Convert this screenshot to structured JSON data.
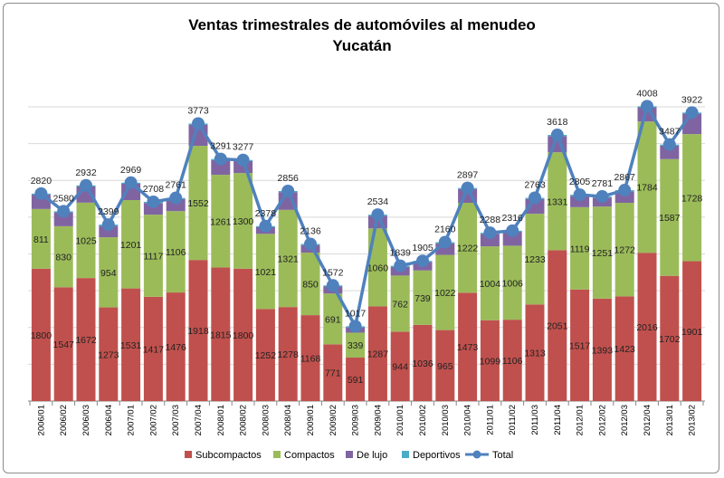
{
  "chart_data": {
    "type": "bar",
    "stacked": true,
    "title": "Ventas trimestrales  de automóviles al menudeo",
    "subtitle": "Yucatán",
    "xlabel": "",
    "ylabel": "",
    "ylim": [
      0,
      4000
    ],
    "grid": true,
    "legend_position": "bottom",
    "categories": [
      "2006/01",
      "2006/02",
      "2006/03",
      "2006/04",
      "2007/01",
      "2007/02",
      "2007/03",
      "2007/04",
      "2008/01",
      "2008/02",
      "2008/03",
      "2008/04",
      "2009/01",
      "2009/02",
      "2009/03",
      "2009/04",
      "2010/01",
      "2010/02",
      "2010/03",
      "2010/04",
      "2011/01",
      "2011/02",
      "2011/03",
      "2011/04",
      "2012/01",
      "2012/02",
      "2012/03",
      "2012/04",
      "2013/01",
      "2013/02"
    ],
    "series": [
      {
        "name": "Subcompactos",
        "color": "#c0504d",
        "labeled": true,
        "values": [
          1800,
          1547,
          1672,
          1273,
          1531,
          1417,
          1476,
          1918,
          1815,
          1800,
          1252,
          1278,
          1168,
          771,
          591,
          1287,
          944,
          1036,
          965,
          1473,
          1099,
          1106,
          1313,
          2051,
          1517,
          1393,
          1423,
          2016,
          1702,
          1901
        ]
      },
      {
        "name": "Compactos",
        "color": "#9bbb59",
        "labeled": true,
        "values": [
          811,
          830,
          1025,
          954,
          1201,
          1117,
          1106,
          1552,
          1261,
          1300,
          1021,
          1321,
          850,
          691,
          339,
          1060,
          762,
          739,
          1022,
          1222,
          1004,
          1006,
          1233,
          1331,
          1119,
          1251,
          1272,
          1784,
          1587,
          1728
        ]
      },
      {
        "name": "De lujo",
        "color": "#8064a2",
        "labeled": false,
        "values": [
          194,
          188,
          220,
          157,
          222,
          159,
          164,
          288,
          200,
          162,
          90,
          242,
          103,
          95,
          72,
          172,
          118,
          115,
          158,
          187,
          170,
          189,
          202,
          221,
          154,
          122,
          157,
          193,
          183,
          278
        ]
      },
      {
        "name": "Deportivos",
        "color": "#4bacc6",
        "labeled": false,
        "values": [
          15,
          15,
          15,
          15,
          15,
          15,
          15,
          15,
          15,
          15,
          15,
          15,
          15,
          15,
          15,
          15,
          15,
          15,
          15,
          15,
          15,
          15,
          15,
          15,
          15,
          15,
          15,
          15,
          15,
          15
        ]
      }
    ],
    "line": {
      "name": "Total",
      "color": "#4f81bd",
      "values": [
        2820,
        2580,
        2932,
        2399,
        2969,
        2708,
        2761,
        3773,
        3291,
        3277,
        2378,
        2856,
        2136,
        1572,
        1017,
        2534,
        1839,
        1905,
        2160,
        2897,
        2288,
        2316,
        2763,
        3618,
        2805,
        2781,
        2867,
        4008,
        3487,
        3922
      ]
    }
  }
}
